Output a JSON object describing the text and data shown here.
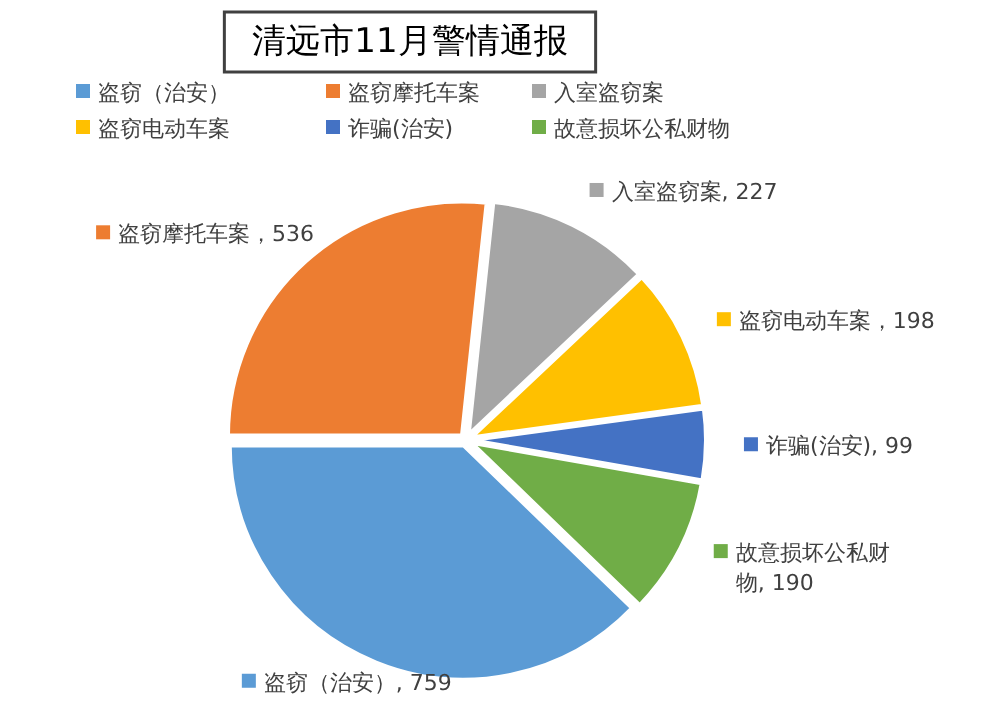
{
  "chart_data": {
    "type": "pie",
    "title": "清远市11月警情通报",
    "categories": [
      "盗窃（治安）",
      "盗窃摩托车案",
      "入室盗窃案",
      "盗窃电动车案",
      "诈骗(治安)",
      "故意损坏公私财物"
    ],
    "values": [
      759,
      536,
      227,
      198,
      99,
      190
    ],
    "colors": [
      "#5b9bd5",
      "#ed7d31",
      "#a5a5a5",
      "#ffc000",
      "#4472c4",
      "#70ad47"
    ],
    "value_labels": [
      "盗窃（治安）, 759",
      "盗窃摩托车案，536",
      "入室盗窃案, 227",
      "盗窃电动车案，198",
      "诈骗(治安), 99",
      "故意损坏公私财物, 190"
    ],
    "legend": "top"
  }
}
